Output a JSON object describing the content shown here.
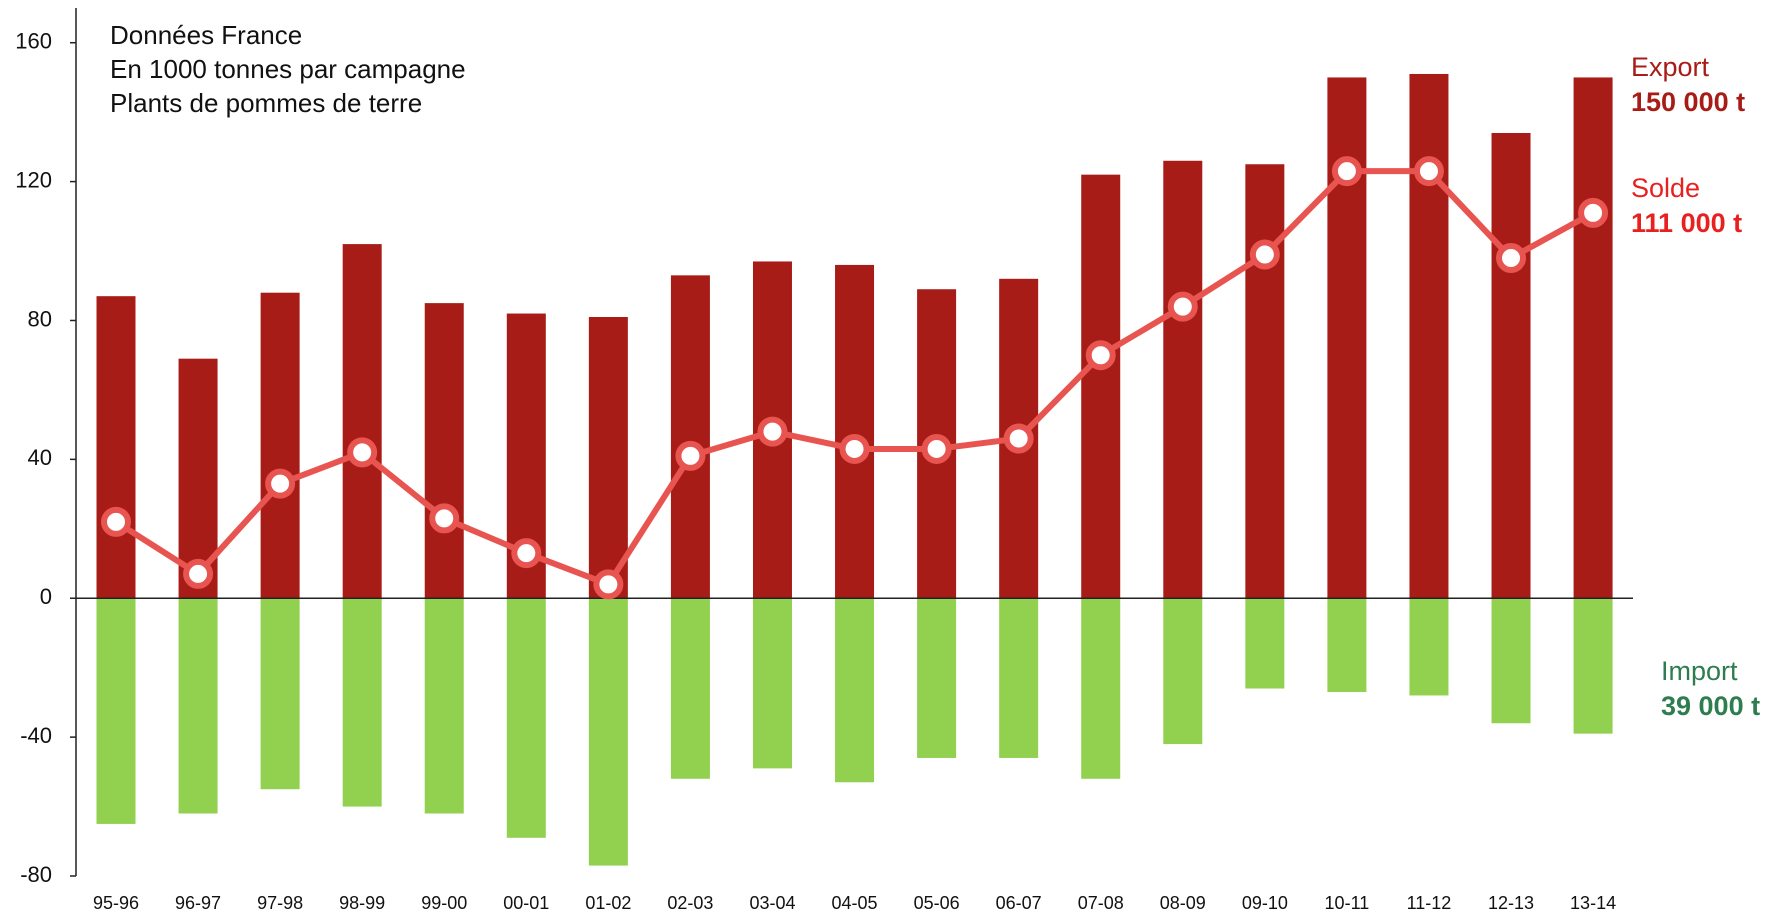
{
  "chart_data": {
    "type": "bar",
    "annotations": [
      "Données France",
      "En 1000 tonnes par campagne",
      "Plants de pommes de terre"
    ],
    "categories": [
      "95-96",
      "96-97",
      "97-98",
      "98-99",
      "99-00",
      "00-01",
      "01-02",
      "02-03",
      "03-04",
      "04-05",
      "05-06",
      "06-07",
      "07-08",
      "08-09",
      "09-10",
      "10-11",
      "11-12",
      "12-13",
      "13-14"
    ],
    "series": [
      {
        "name": "Export",
        "label": "150 000 t",
        "type": "bar",
        "color": "#a81c17",
        "label_color": "#a81c17",
        "values": [
          87,
          69,
          88,
          102,
          85,
          82,
          81,
          93,
          97,
          96,
          89,
          92,
          122,
          126,
          125,
          150,
          151,
          134,
          150
        ]
      },
      {
        "name": "Solde",
        "label": "111 000 t",
        "type": "line",
        "color": "#e85450",
        "label_color": "#e8201f",
        "values": [
          22,
          7,
          33,
          42,
          23,
          13,
          4,
          41,
          48,
          43,
          43,
          46,
          70,
          84,
          99,
          123,
          123,
          98,
          111
        ]
      },
      {
        "name": "Import",
        "label": "39 000 t",
        "type": "bar",
        "color": "#92d050",
        "label_color": "#2e7d4f",
        "values": [
          -65,
          -62,
          -55,
          -60,
          -62,
          -69,
          -77,
          -52,
          -49,
          -53,
          -46,
          -46,
          -52,
          -42,
          -26,
          -27,
          -28,
          -36,
          -39
        ]
      }
    ],
    "ylim": [
      -80,
      170
    ],
    "yticks": [
      160,
      120,
      80,
      40,
      0,
      -40,
      -80
    ],
    "grid": false
  }
}
